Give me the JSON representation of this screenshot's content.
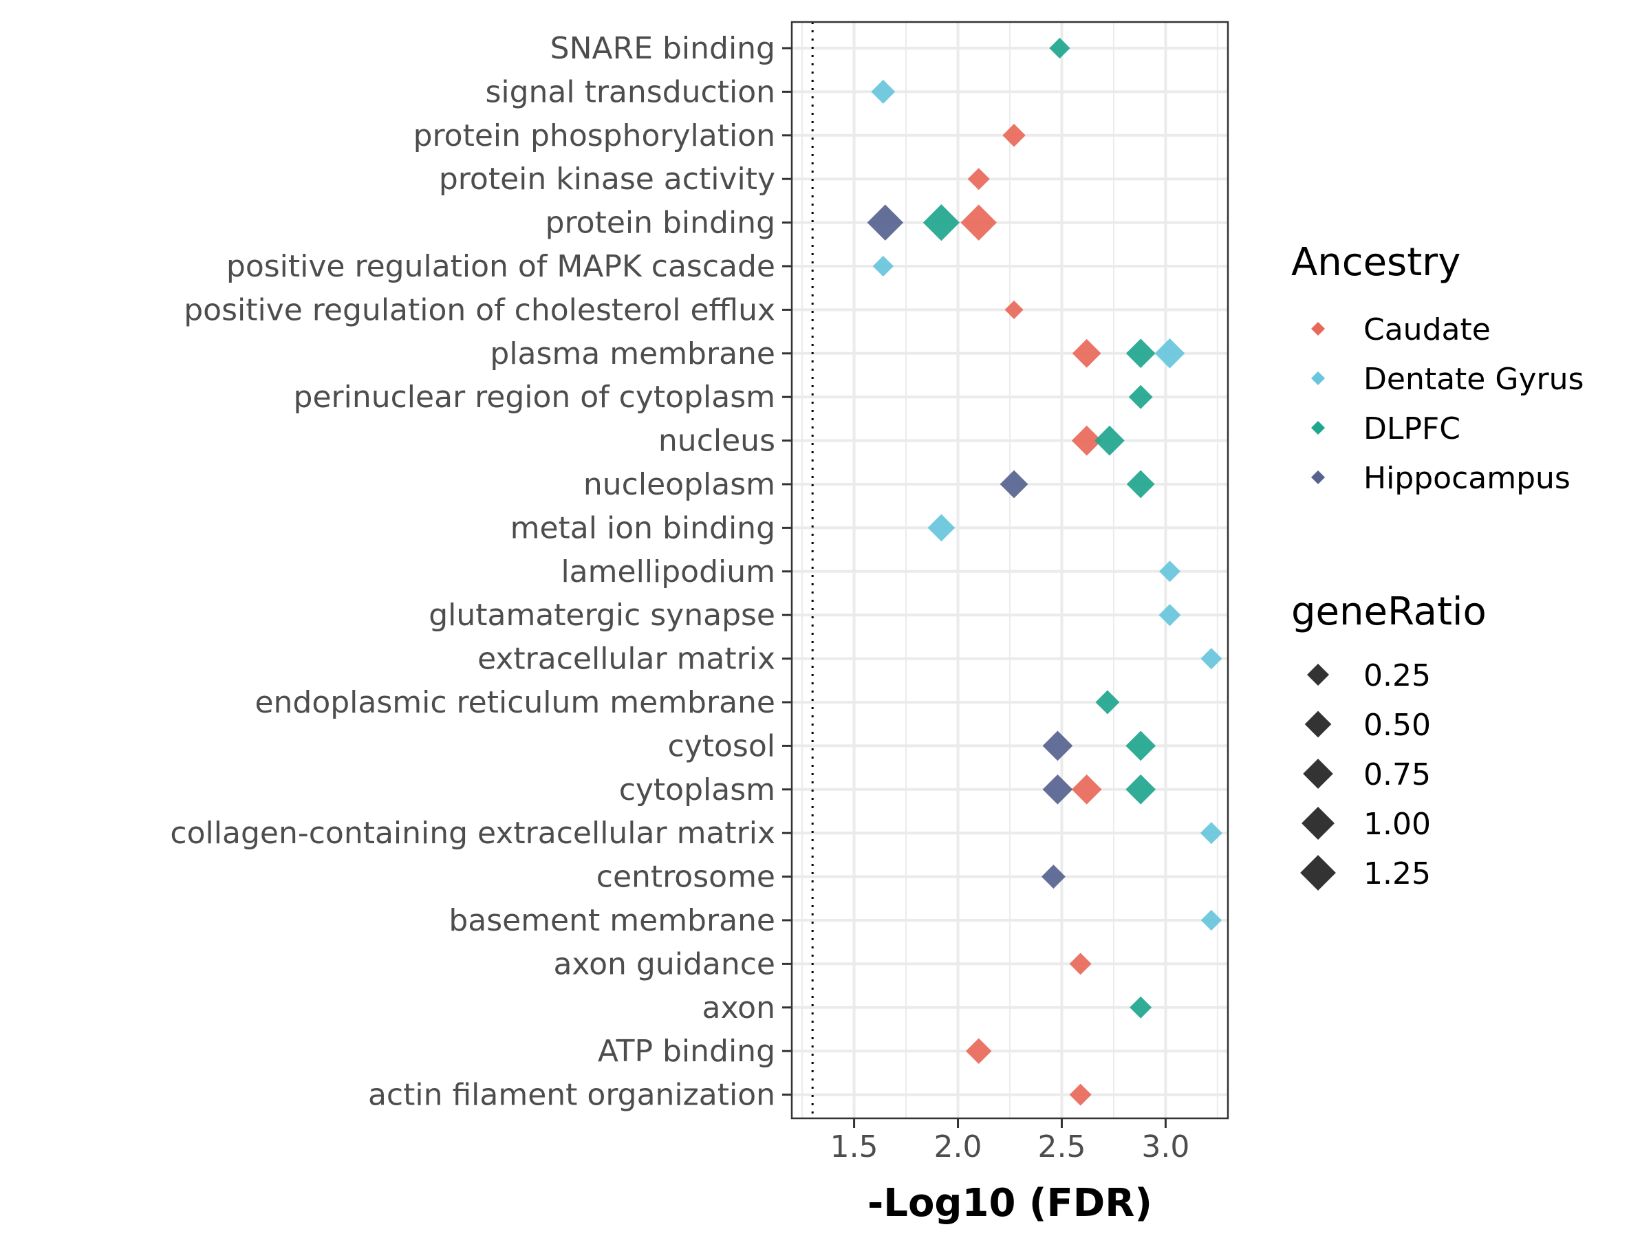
{
  "chart_data": {
    "type": "scatter",
    "xlabel": "-Log10 (FDR)",
    "xlim": [
      1.2,
      3.3
    ],
    "xticks": [
      1.5,
      2.0,
      2.5,
      3.0
    ],
    "xtick_labels": [
      "1.5",
      "2.0",
      "2.5",
      "3.0"
    ],
    "reference_line_x": 1.3,
    "marker": "diamond",
    "grid": true,
    "legend_position": "right",
    "categories": [
      "SNARE binding",
      "signal transduction",
      "protein phosphorylation",
      "protein kinase activity",
      "protein binding",
      "positive regulation of MAPK cascade",
      "positive regulation of cholesterol efflux",
      "plasma membrane",
      "perinuclear region of cytoplasm",
      "nucleus",
      "nucleoplasm",
      "metal ion binding",
      "lamellipodium",
      "glutamatergic synapse",
      "extracellular matrix",
      "endoplasmic reticulum membrane",
      "cytosol",
      "cytoplasm",
      "collagen-containing extracellular matrix",
      "centrosome",
      "basement membrane",
      "axon guidance",
      "axon",
      "ATP binding",
      "actin filament organization"
    ],
    "color_legend": {
      "title": "Ancestry",
      "entries": [
        {
          "name": "Caudate",
          "color": "#E8695A"
        },
        {
          "name": "Dentate Gyrus",
          "color": "#67C6DC"
        },
        {
          "name": "DLPFC",
          "color": "#1FA68E"
        },
        {
          "name": "Hippocampus",
          "color": "#56638F"
        }
      ]
    },
    "size_legend": {
      "title": "geneRatio",
      "values": [
        0.25,
        0.5,
        0.75,
        1.0,
        1.25
      ],
      "labels": [
        "0.25",
        "0.50",
        "0.75",
        "1.00",
        "1.25"
      ]
    },
    "points": [
      {
        "term": "SNARE binding",
        "series": "DLPFC",
        "x": 2.49,
        "geneRatio": 0.2
      },
      {
        "term": "signal transduction",
        "series": "Dentate Gyrus",
        "x": 1.64,
        "geneRatio": 0.35
      },
      {
        "term": "protein phosphorylation",
        "series": "Caudate",
        "x": 2.27,
        "geneRatio": 0.3
      },
      {
        "term": "protein kinase activity",
        "series": "Caudate",
        "x": 2.1,
        "geneRatio": 0.25
      },
      {
        "term": "protein binding",
        "series": "Hippocampus",
        "x": 1.65,
        "geneRatio": 1.3
      },
      {
        "term": "protein binding",
        "series": "DLPFC",
        "x": 1.92,
        "geneRatio": 1.35
      },
      {
        "term": "protein binding",
        "series": "Caudate",
        "x": 2.1,
        "geneRatio": 1.3
      },
      {
        "term": "positive regulation of MAPK cascade",
        "series": "Dentate Gyrus",
        "x": 1.64,
        "geneRatio": 0.2
      },
      {
        "term": "positive regulation of cholesterol efflux",
        "series": "Caudate",
        "x": 2.27,
        "geneRatio": 0.12
      },
      {
        "term": "plasma membrane",
        "series": "Caudate",
        "x": 2.62,
        "geneRatio": 0.65
      },
      {
        "term": "plasma membrane",
        "series": "DLPFC",
        "x": 2.88,
        "geneRatio": 0.7
      },
      {
        "term": "plasma membrane",
        "series": "Dentate Gyrus",
        "x": 3.02,
        "geneRatio": 0.75
      },
      {
        "term": "perinuclear region of cytoplasm",
        "series": "DLPFC",
        "x": 2.88,
        "geneRatio": 0.35
      },
      {
        "term": "nucleus",
        "series": "Caudate",
        "x": 2.62,
        "geneRatio": 0.75
      },
      {
        "term": "nucleus",
        "series": "DLPFC",
        "x": 2.73,
        "geneRatio": 0.75
      },
      {
        "term": "nucleoplasm",
        "series": "Hippocampus",
        "x": 2.27,
        "geneRatio": 0.6
      },
      {
        "term": "nucleoplasm",
        "series": "DLPFC",
        "x": 2.88,
        "geneRatio": 0.6
      },
      {
        "term": "metal ion binding",
        "series": "Dentate Gyrus",
        "x": 1.92,
        "geneRatio": 0.55
      },
      {
        "term": "lamellipodium",
        "series": "Dentate Gyrus",
        "x": 3.02,
        "geneRatio": 0.22
      },
      {
        "term": "glutamatergic synapse",
        "series": "Dentate Gyrus",
        "x": 3.02,
        "geneRatio": 0.25
      },
      {
        "term": "extracellular matrix",
        "series": "Dentate Gyrus",
        "x": 3.22,
        "geneRatio": 0.22
      },
      {
        "term": "endoplasmic reticulum membrane",
        "series": "DLPFC",
        "x": 2.72,
        "geneRatio": 0.35
      },
      {
        "term": "cytosol",
        "series": "Hippocampus",
        "x": 2.48,
        "geneRatio": 0.75
      },
      {
        "term": "cytosol",
        "series": "DLPFC",
        "x": 2.88,
        "geneRatio": 0.75
      },
      {
        "term": "cytoplasm",
        "series": "Hippocampus",
        "x": 2.48,
        "geneRatio": 0.75
      },
      {
        "term": "cytoplasm",
        "series": "Caudate",
        "x": 2.62,
        "geneRatio": 0.75
      },
      {
        "term": "cytoplasm",
        "series": "DLPFC",
        "x": 2.88,
        "geneRatio": 0.75
      },
      {
        "term": "collagen-containing extracellular matrix",
        "series": "Dentate Gyrus",
        "x": 3.22,
        "geneRatio": 0.25
      },
      {
        "term": "centrosome",
        "series": "Hippocampus",
        "x": 2.46,
        "geneRatio": 0.35
      },
      {
        "term": "basement membrane",
        "series": "Dentate Gyrus",
        "x": 3.22,
        "geneRatio": 0.2
      },
      {
        "term": "axon guidance",
        "series": "Caudate",
        "x": 2.59,
        "geneRatio": 0.25
      },
      {
        "term": "axon",
        "series": "DLPFC",
        "x": 2.88,
        "geneRatio": 0.25
      },
      {
        "term": "ATP binding",
        "series": "Caudate",
        "x": 2.1,
        "geneRatio": 0.45
      },
      {
        "term": "actin filament organization",
        "series": "Caudate",
        "x": 2.59,
        "geneRatio": 0.25
      }
    ]
  }
}
